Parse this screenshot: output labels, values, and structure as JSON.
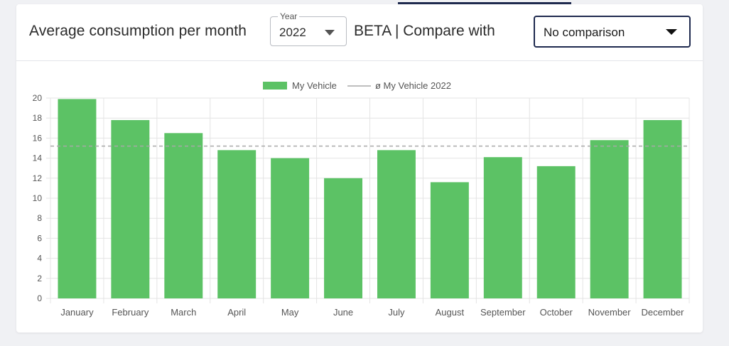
{
  "header": {
    "title": "Average consumption per month",
    "year_label": "Year",
    "year_value": "2022",
    "compare_label": "BETA | Compare with",
    "compare_value": "No comparison"
  },
  "colors": {
    "bar": "#5cc265",
    "grid": "#e4e4e4",
    "average_line": "#a8a8a8",
    "text": "#555555"
  },
  "chart_data": {
    "type": "bar",
    "categories": [
      "January",
      "February",
      "March",
      "April",
      "May",
      "June",
      "July",
      "August",
      "September",
      "October",
      "November",
      "December"
    ],
    "series": [
      {
        "name": "My Vehicle",
        "values": [
          19.9,
          17.8,
          16.5,
          14.8,
          14.0,
          12.0,
          14.8,
          11.6,
          14.1,
          13.2,
          15.8,
          17.8
        ]
      }
    ],
    "average": {
      "name": "ø My Vehicle 2022",
      "value": 15.2
    },
    "ylim": [
      0,
      20
    ],
    "yticks": [
      0,
      2,
      4,
      6,
      8,
      10,
      12,
      14,
      16,
      18,
      20
    ],
    "grid": true,
    "legend_position": "top-center",
    "xlabel": "",
    "ylabel": ""
  }
}
